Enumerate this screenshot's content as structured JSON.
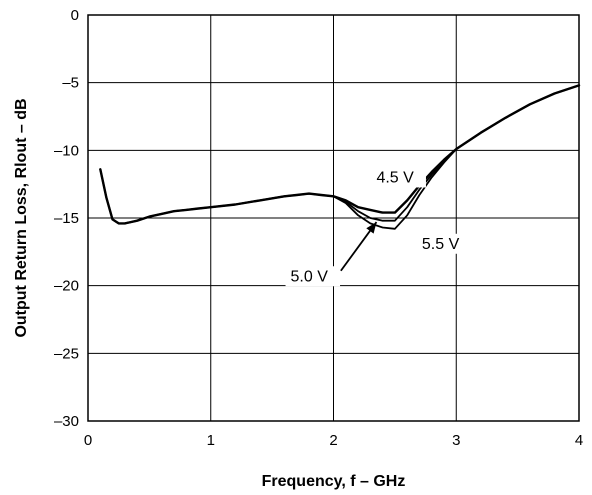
{
  "chart_data": {
    "type": "line",
    "xlabel": "Frequency, f – GHz",
    "ylabel": "Output Return Loss, Rlout – dB",
    "xlim": [
      0,
      4
    ],
    "ylim": [
      -30,
      0
    ],
    "x_ticks": [
      0,
      1,
      2,
      3,
      4
    ],
    "x_tick_labels": [
      "0",
      "1",
      "2",
      "3",
      "4"
    ],
    "y_ticks": [
      0,
      -5,
      -10,
      -15,
      -20,
      -25,
      -30
    ],
    "y_tick_labels": [
      "0",
      "–5",
      "–10",
      "–15",
      "–20",
      "–25",
      "–30"
    ],
    "grid": true,
    "series": [
      {
        "name": "4.5 V",
        "x": [
          0.1,
          0.15,
          0.2,
          0.25,
          0.3,
          0.4,
          0.5,
          0.6,
          0.7,
          0.8,
          0.9,
          1.0,
          1.2,
          1.4,
          1.6,
          1.7,
          1.8,
          1.9,
          2.0,
          2.1,
          2.2,
          2.3,
          2.4,
          2.5,
          2.6,
          2.7,
          2.8,
          2.9,
          3.0,
          3.2,
          3.4,
          3.6,
          3.8,
          4.0
        ],
        "y": [
          -11.4,
          -13.5,
          -15.1,
          -15.4,
          -15.4,
          -15.2,
          -14.9,
          -14.7,
          -14.5,
          -14.4,
          -14.3,
          -14.2,
          -14.0,
          -13.7,
          -13.4,
          -13.3,
          -13.2,
          -13.3,
          -13.4,
          -13.7,
          -14.2,
          -14.4,
          -14.6,
          -14.6,
          -13.7,
          -12.6,
          -11.6,
          -10.7,
          -9.9,
          -8.7,
          -7.6,
          -6.6,
          -5.8,
          -5.2
        ]
      },
      {
        "name": "5.0 V",
        "x": [
          0.1,
          0.15,
          0.2,
          0.25,
          0.3,
          0.4,
          0.5,
          0.6,
          0.7,
          0.8,
          0.9,
          1.0,
          1.2,
          1.4,
          1.6,
          1.7,
          1.8,
          1.9,
          2.0,
          2.1,
          2.2,
          2.3,
          2.4,
          2.5,
          2.6,
          2.7,
          2.8,
          2.9,
          3.0,
          3.2,
          3.4,
          3.6,
          3.8,
          4.0
        ],
        "y": [
          -11.4,
          -13.5,
          -15.1,
          -15.4,
          -15.4,
          -15.2,
          -14.9,
          -14.7,
          -14.5,
          -14.4,
          -14.3,
          -14.2,
          -14.0,
          -13.7,
          -13.4,
          -13.3,
          -13.2,
          -13.3,
          -13.4,
          -13.8,
          -14.5,
          -15.0,
          -15.2,
          -15.2,
          -14.2,
          -12.9,
          -11.8,
          -10.8,
          -9.9,
          -8.7,
          -7.6,
          -6.6,
          -5.8,
          -5.2
        ]
      },
      {
        "name": "5.5 V",
        "x": [
          0.1,
          0.15,
          0.2,
          0.25,
          0.3,
          0.4,
          0.5,
          0.6,
          0.7,
          0.8,
          0.9,
          1.0,
          1.2,
          1.4,
          1.6,
          1.7,
          1.8,
          1.9,
          2.0,
          2.1,
          2.2,
          2.3,
          2.4,
          2.5,
          2.6,
          2.7,
          2.8,
          2.9,
          3.0,
          3.2,
          3.4,
          3.6,
          3.8,
          4.0
        ],
        "y": [
          -11.4,
          -13.5,
          -15.1,
          -15.4,
          -15.4,
          -15.2,
          -14.9,
          -14.7,
          -14.5,
          -14.4,
          -14.3,
          -14.2,
          -14.0,
          -13.7,
          -13.4,
          -13.3,
          -13.2,
          -13.3,
          -13.4,
          -13.9,
          -14.8,
          -15.4,
          -15.7,
          -15.8,
          -14.8,
          -13.3,
          -12.0,
          -10.9,
          -9.9,
          -8.7,
          -7.6,
          -6.6,
          -5.8,
          -5.2
        ]
      }
    ],
    "annotations": [
      {
        "text": "4.5 V",
        "x": 2.35,
        "y": -12.3
      },
      {
        "text": "5.5 V",
        "x": 2.72,
        "y": -17.2
      },
      {
        "text": "5.0 V",
        "x": 1.65,
        "y": -19.6
      }
    ],
    "arrow": {
      "from": [
        2.06,
        -18.9
      ],
      "to": [
        2.35,
        -15.3
      ]
    }
  }
}
